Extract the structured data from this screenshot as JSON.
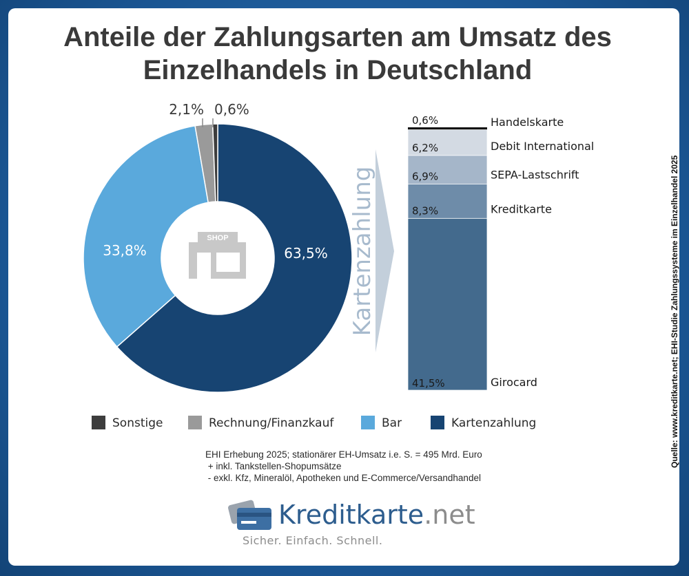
{
  "title": {
    "line1": "Anteile der Zahlungsarten am Umsatz des",
    "line2": "Einzelhandels in Deutschland"
  },
  "colors": {
    "sonstige": "#3d3d3d",
    "rechnung": "#9a9a9a",
    "bar": "#5aa9dc",
    "kartenzahlung": "#174472",
    "handelskarte": "#111111",
    "debit_international": "#d3dae3",
    "sepa": "#a5b6c9",
    "kreditkarte": "#6e8ca9",
    "girocard": "#436a8d",
    "arrow": "#c3cfdb",
    "shop_icon": "#c8c8c8"
  },
  "chart_data": [
    {
      "type": "pie",
      "variant": "donut",
      "categories": [
        "Kartenzahlung",
        "Bar",
        "Rechnung/Finanzkauf",
        "Sonstige"
      ],
      "values": [
        63.5,
        33.8,
        2.1,
        0.6
      ],
      "labels": [
        "63,5%",
        "33,8%",
        "2,1%",
        "0,6%"
      ],
      "center_icon_label": "SHOP"
    },
    {
      "type": "bar",
      "variant": "stacked-single-column",
      "title": "Kartenzahlung",
      "categories": [
        "Handelskarte",
        "Debit International",
        "SEPA-Lastschrift",
        "Kreditkarte",
        "Girocard"
      ],
      "values": [
        0.6,
        6.2,
        6.9,
        8.3,
        41.5
      ],
      "labels": [
        "0,6%",
        "6,2%",
        "6,9%",
        "8,3%",
        "41,5%"
      ]
    }
  ],
  "legend": [
    {
      "label": "Sonstige",
      "key": "sonstige"
    },
    {
      "label": "Rechnung/Finanzkauf",
      "key": "rechnung"
    },
    {
      "label": "Bar",
      "key": "bar"
    },
    {
      "label": "Kartenzahlung",
      "key": "kartenzahlung"
    }
  ],
  "source_note": {
    "line1": "EHI Erhebung 2025; stationärer EH-Umsatz i.e. S. = 495 Mrd. Euro",
    "line2": " + inkl. Tankstellen-Shopumsätze",
    "line3": " - exkl. Kfz, Mineralöl, Apotheken und E-Commerce/Versandhandel"
  },
  "vertical_source": "Quelle: www.kreditkarte.net;  EHI-Studie Zahlungssysteme im Einzelhandel 2025",
  "logo": {
    "brand": "Kreditkarte",
    "tld": ".net",
    "slogan": "Sicher. Einfach. Schnell."
  }
}
